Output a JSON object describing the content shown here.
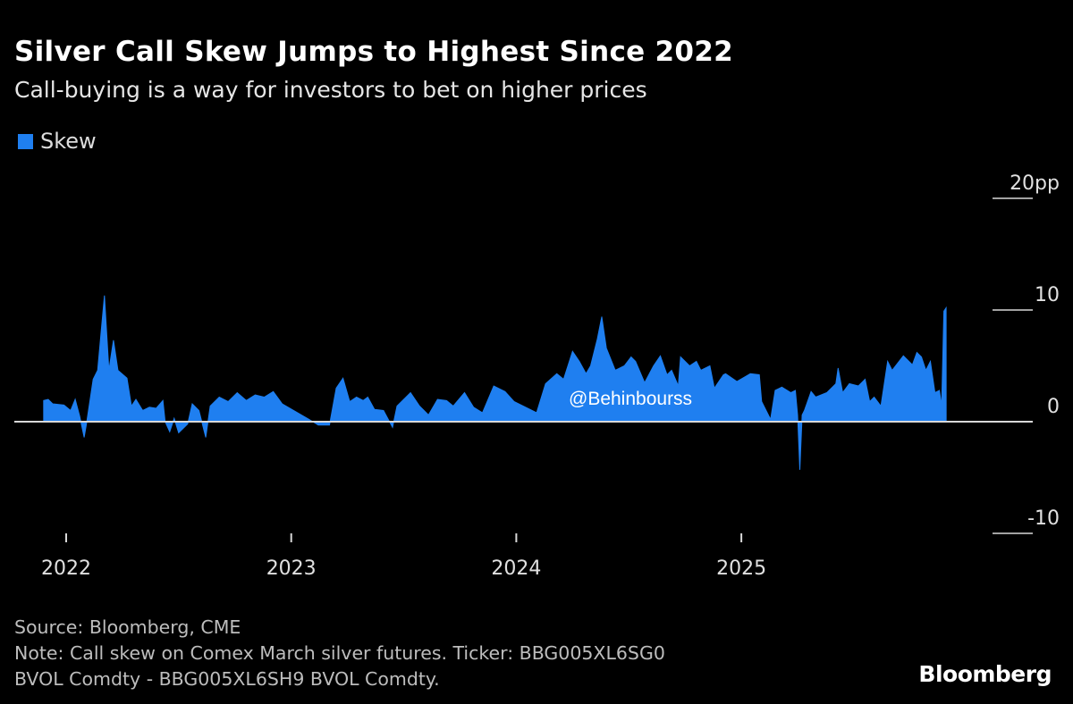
{
  "chart_data": {
    "type": "area",
    "title": "Silver Call Skew Jumps to Highest Since 2022",
    "subtitle": "Call-buying is a way for investors to bet on higher prices",
    "legend": [
      {
        "name": "Skew",
        "color": "#1f7ff0"
      }
    ],
    "legend_position": "top-left",
    "ylim": [
      -10,
      20
    ],
    "yticks": [
      {
        "value": 20,
        "label": "20pp"
      },
      {
        "value": 10,
        "label": "10"
      },
      {
        "value": 0,
        "label": "0"
      },
      {
        "value": -10,
        "label": "-10"
      }
    ],
    "xticks": [
      {
        "value": 2022,
        "label": "2022"
      },
      {
        "value": 2023,
        "label": "2023"
      },
      {
        "value": 2024,
        "label": "2024"
      },
      {
        "value": 2025,
        "label": "2025"
      }
    ],
    "xlim": [
      2021.9,
      2025.95
    ],
    "series": [
      {
        "name": "Skew",
        "x": [
          2021.9,
          2021.92,
          2021.94,
          2021.99,
          2022.02,
          2022.04,
          2022.06,
          2022.08,
          2022.09,
          2022.12,
          2022.14,
          2022.17,
          2022.19,
          2022.21,
          2022.23,
          2022.27,
          2022.29,
          2022.31,
          2022.34,
          2022.37,
          2022.4,
          2022.43,
          2022.44,
          2022.46,
          2022.48,
          2022.5,
          2022.54,
          2022.56,
          2022.59,
          2022.62,
          2022.64,
          2022.68,
          2022.72,
          2022.76,
          2022.8,
          2022.84,
          2022.88,
          2022.92,
          2022.96,
          2023.08,
          2023.12,
          2023.17,
          2023.2,
          2023.23,
          2023.26,
          2023.29,
          2023.32,
          2023.34,
          2023.37,
          2023.41,
          2023.45,
          2023.47,
          2023.53,
          2023.57,
          2023.61,
          2023.65,
          2023.69,
          2023.72,
          2023.77,
          2023.81,
          2023.85,
          2023.9,
          2023.95,
          2023.99,
          2024.03,
          2024.09,
          2024.13,
          2024.18,
          2024.21,
          2024.25,
          2024.28,
          2024.31,
          2024.33,
          2024.36,
          2024.38,
          2024.4,
          2024.44,
          2024.48,
          2024.51,
          2024.53,
          2024.57,
          2024.61,
          2024.64,
          2024.67,
          2024.69,
          2024.72,
          2024.73,
          2024.77,
          2024.8,
          2024.82,
          2024.86,
          2024.88,
          2024.92,
          2024.93,
          2024.98,
          2025.04,
          2025.08,
          2025.09,
          2025.13,
          2025.15,
          2025.18,
          2025.22,
          2025.24,
          2025.25,
          2025.26,
          2025.27,
          2025.28,
          2025.31,
          2025.33,
          2025.38,
          2025.42,
          2025.43,
          2025.45,
          2025.48,
          2025.52,
          2025.55,
          2025.57,
          2025.59,
          2025.62,
          2025.65,
          2025.67,
          2025.72,
          2025.76,
          2025.78,
          2025.8,
          2025.82,
          2025.84,
          2025.86,
          2025.88,
          2025.89,
          2025.9,
          2025.91
        ],
        "values": [
          1.9,
          2.0,
          1.6,
          1.5,
          1.0,
          2.0,
          0.5,
          -1.4,
          -0.2,
          3.8,
          4.6,
          11.3,
          4.6,
          7.3,
          4.6,
          3.9,
          1.4,
          2.0,
          1.0,
          1.3,
          1.2,
          1.9,
          0,
          -0.9,
          0.3,
          -1.0,
          -0.2,
          1.6,
          1.0,
          -1.4,
          1.4,
          2.2,
          1.8,
          2.6,
          1.9,
          2.4,
          2.2,
          2.7,
          1.6,
          0.2,
          -0.3,
          -0.3,
          3.0,
          3.9,
          1.8,
          2.2,
          1.9,
          2.2,
          1.1,
          1.0,
          -0.5,
          1.4,
          2.6,
          1.4,
          0.6,
          2.0,
          1.9,
          1.4,
          2.6,
          1.3,
          0.8,
          3.2,
          2.7,
          1.8,
          1.4,
          0.8,
          3.4,
          4.3,
          3.8,
          6.3,
          5.4,
          4.3,
          5.0,
          7.4,
          9.4,
          6.6,
          4.6,
          5.0,
          5.8,
          5.4,
          3.5,
          5.0,
          5.9,
          4.2,
          4.6,
          3.2,
          5.8,
          5.0,
          5.4,
          4.6,
          5.0,
          3.0,
          4.2,
          4.3,
          3.6,
          4.3,
          4.2,
          1.8,
          0.2,
          2.8,
          3.1,
          2.6,
          2.8,
          0.6,
          -4.3,
          0.6,
          1.0,
          2.7,
          2.2,
          2.6,
          3.4,
          4.8,
          2.6,
          3.4,
          3.2,
          3.8,
          1.8,
          2.2,
          1.4,
          5.4,
          4.6,
          5.9,
          5.1,
          6.2,
          5.8,
          4.6,
          5.4,
          2.6,
          2.8,
          1.4,
          9.9,
          10.2
        ]
      }
    ],
    "watermark": "@Behinbourss"
  },
  "footer": {
    "source": "Source: Bloomberg, CME",
    "note_line1": "Note: Call skew on Comex March silver futures. Ticker: BBG005XL6SG0",
    "note_line2": "BVOL Comdty - BBG005XL6SH9 BVOL Comdty."
  },
  "brand": "Bloomberg"
}
